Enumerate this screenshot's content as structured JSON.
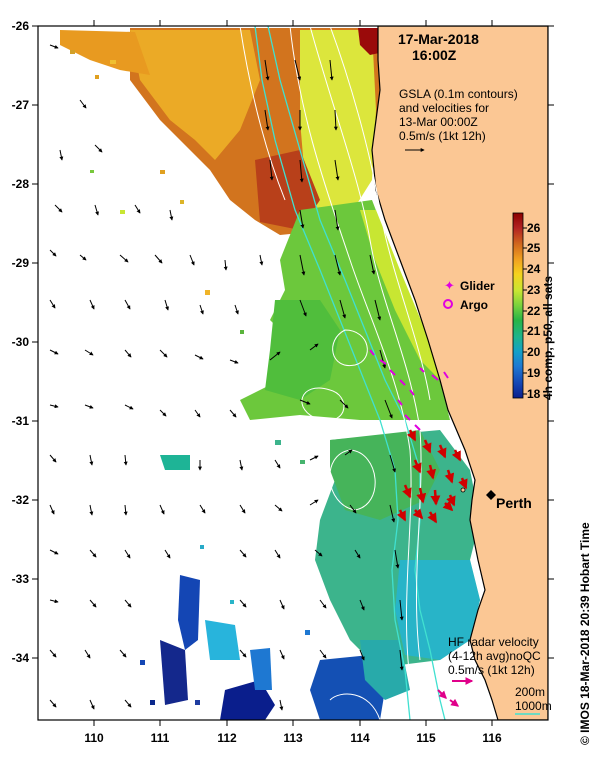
{
  "header": {
    "date": "17-Mar-2018",
    "time": "16:00Z"
  },
  "gsla_note": {
    "line1": "GSLA (0.1m contours)",
    "line2": "and velocities for",
    "line3": "13-Mar 00:00Z",
    "line4": "0.5m/s (1kt 12h)"
  },
  "legend": {
    "glider": "Glider",
    "argo": "Argo"
  },
  "colorbar": {
    "label": "4h comp, p50, all sats",
    "ticks": [
      "26",
      "25",
      "24",
      "23",
      "22",
      "21",
      "20",
      "19",
      "18"
    ],
    "colors": [
      "#8b0000",
      "#b22222",
      "#d2691e",
      "#f0a020",
      "#f5d21e",
      "#c8e632",
      "#7ad23c",
      "#28b446",
      "#1eb48c",
      "#14a0c8",
      "#1e78d2",
      "#1446b4",
      "#0a1e8c"
    ]
  },
  "axes": {
    "x_ticks": [
      "110",
      "111",
      "112",
      "113",
      "114",
      "115",
      "116"
    ],
    "y_ticks": [
      "-26",
      "-27",
      "-28",
      "-29",
      "-30",
      "-31",
      "-32",
      "-33",
      "-34"
    ],
    "xlim": [
      109.3,
      117.0
    ],
    "ylim": [
      -34.8,
      -26.0
    ]
  },
  "city": {
    "name": "Perth",
    "lon": 115.86,
    "lat": -31.95
  },
  "hf_note": {
    "line1": "HF radar velocity",
    "line2": "(4-12h avg)noQC",
    "line3": "0.5m/s (1kt 12h)"
  },
  "bathy": {
    "line1": "200m",
    "line2": "1000m"
  },
  "credit": "© IMOS 18-Mar-2018 20:39 Hobart Time",
  "colors": {
    "land": "#fbc794",
    "coast": "#000000",
    "contour": "#ffffff",
    "bathy": "#40e0d0",
    "hf": "#e0008a"
  }
}
